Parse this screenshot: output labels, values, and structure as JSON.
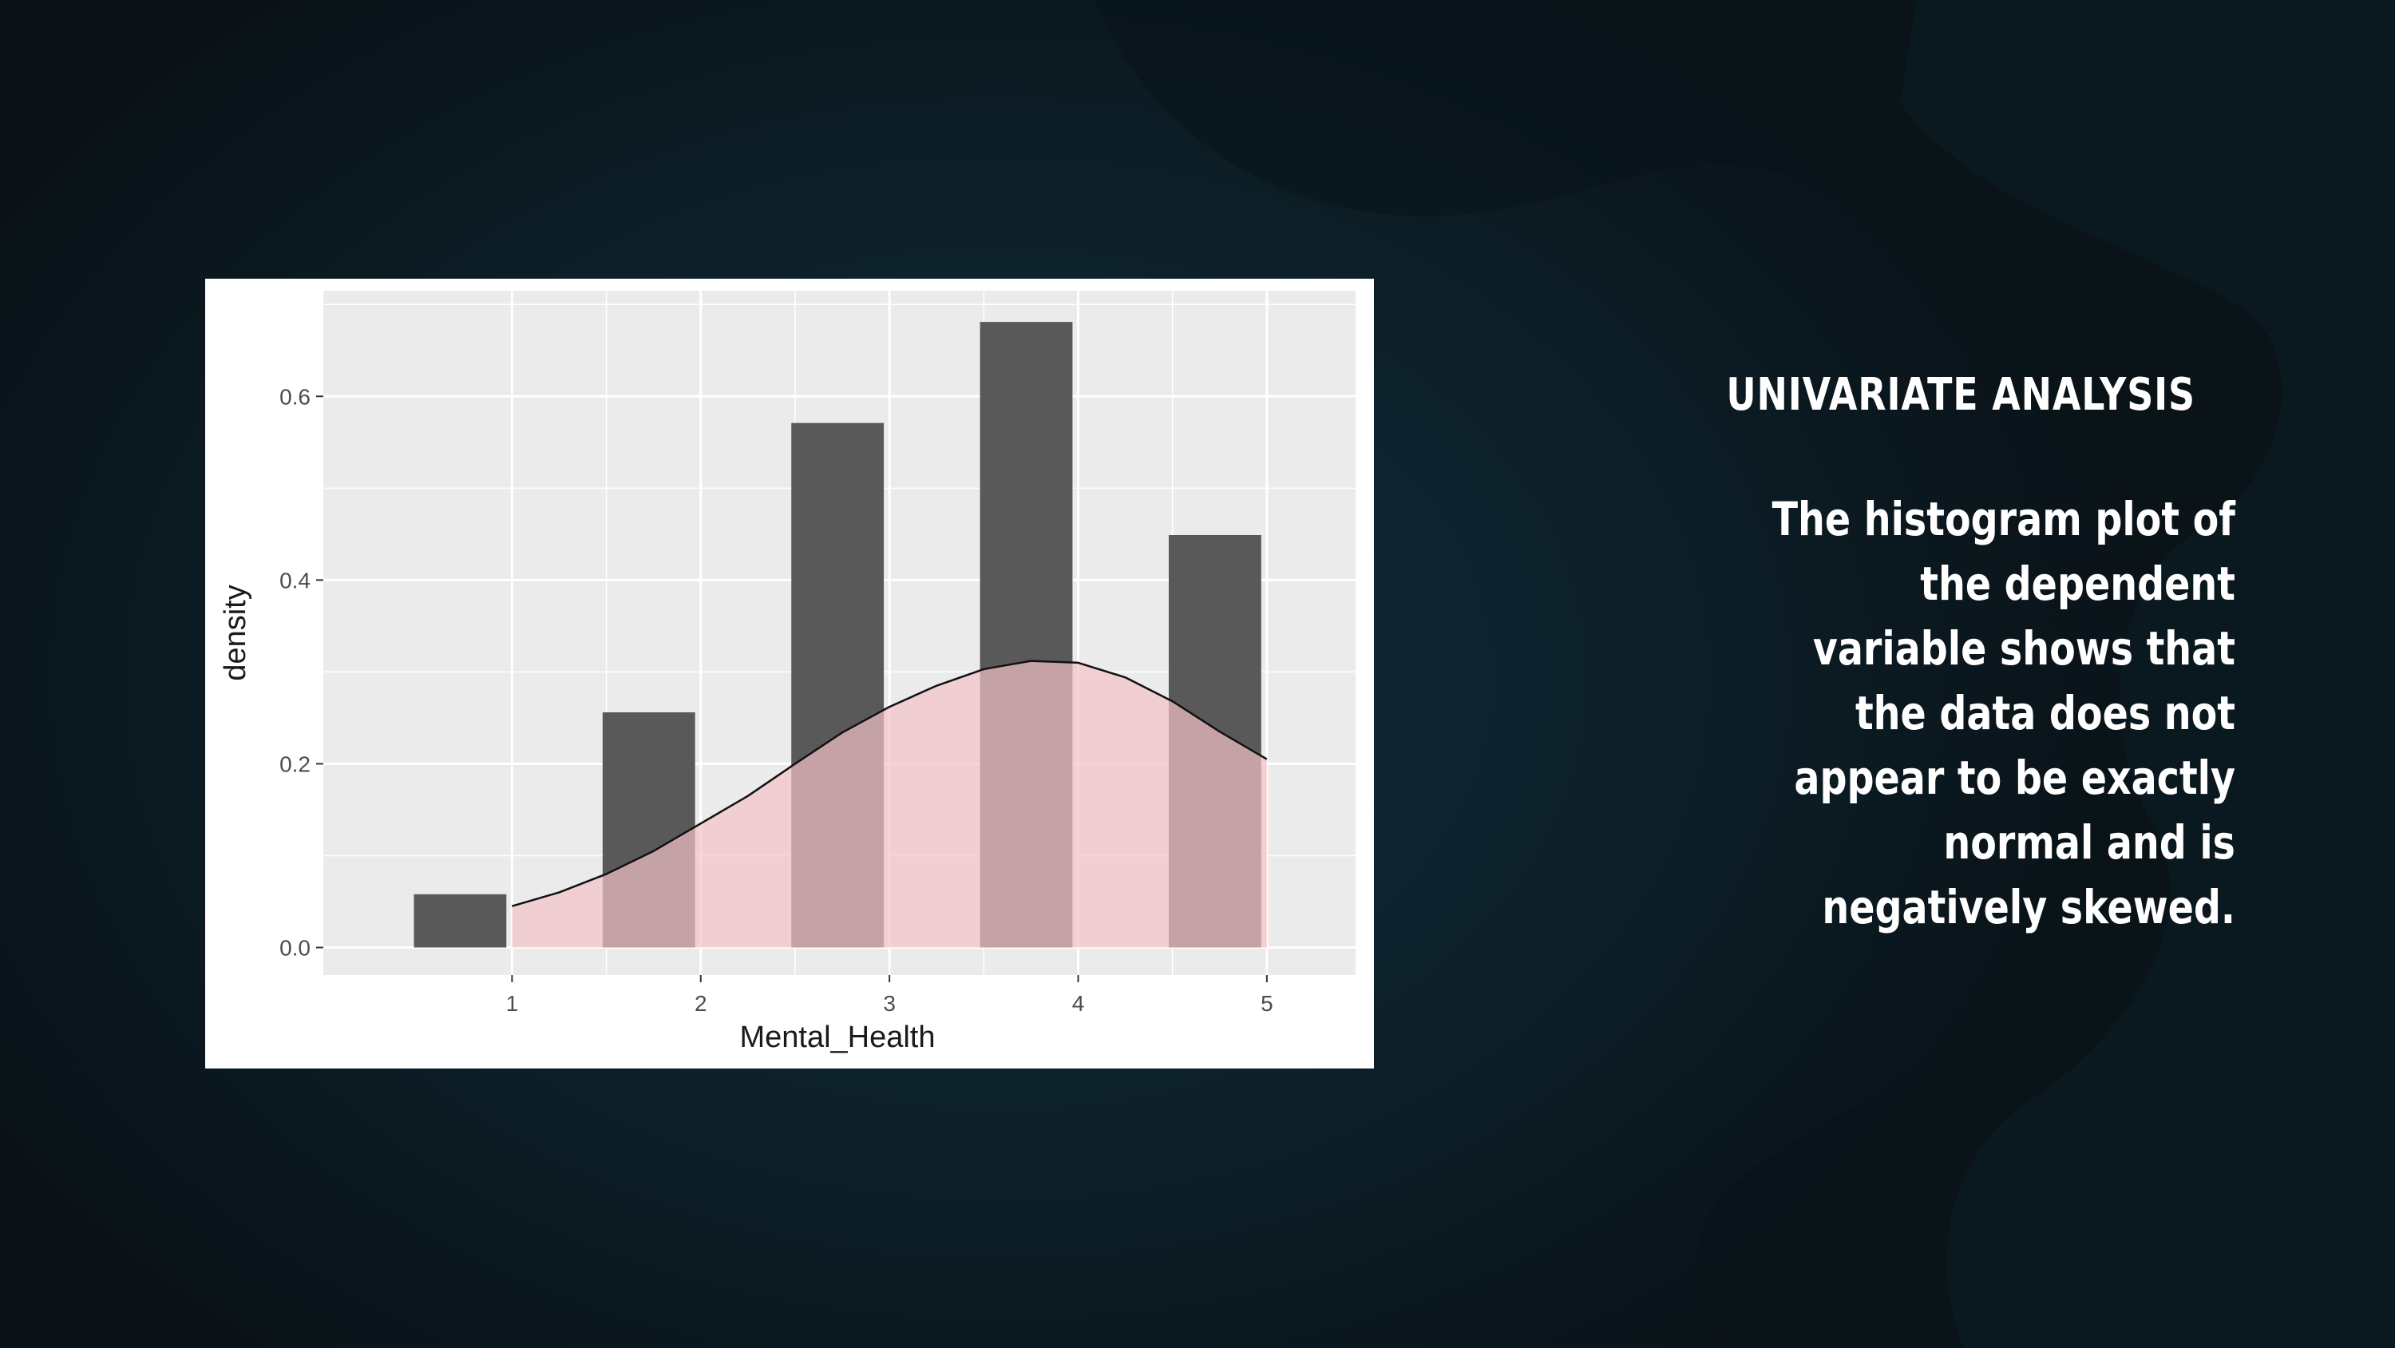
{
  "slide": {
    "heading": "UNIVARIATE ANALYSIS",
    "body": "The histogram plot of the dependent variable shows that the data does not appear to be exactly normal and is negatively skewed."
  },
  "colors": {
    "background": "#0d222c",
    "bar_fill": "#595959",
    "density_fill": "#f4c2c6",
    "plot_panel": "#ebebeb",
    "text": "#ffffff"
  },
  "chart_data": {
    "type": "bar",
    "xlabel": "Mental_Health",
    "ylabel": "density",
    "x_ticks": [
      "1",
      "2",
      "3",
      "4",
      "5"
    ],
    "y_ticks": [
      "0.0",
      "0.2",
      "0.4",
      "0.6"
    ],
    "xlim": [
      0.0,
      5.47
    ],
    "ylim": [
      -0.03,
      0.715
    ],
    "grid": true,
    "bars": [
      {
        "x_start": 0.48,
        "x_end": 0.97,
        "density": 0.058
      },
      {
        "x_start": 1.48,
        "x_end": 1.97,
        "density": 0.256
      },
      {
        "x_start": 2.48,
        "x_end": 2.97,
        "density": 0.571
      },
      {
        "x_start": 3.48,
        "x_end": 3.97,
        "density": 0.681
      },
      {
        "x_start": 4.48,
        "x_end": 4.97,
        "density": 0.449
      }
    ],
    "series": [
      {
        "type": "area",
        "x": [
          1.0,
          1.25,
          1.5,
          1.75,
          2.0,
          2.25,
          2.5,
          2.75,
          3.0,
          3.25,
          3.5,
          3.75,
          4.0,
          4.25,
          4.5,
          4.75,
          5.0
        ],
        "values": [
          0.045,
          0.06,
          0.08,
          0.105,
          0.135,
          0.165,
          0.2,
          0.234,
          0.262,
          0.285,
          0.303,
          0.312,
          0.31,
          0.294,
          0.268,
          0.235,
          0.205
        ]
      }
    ]
  }
}
